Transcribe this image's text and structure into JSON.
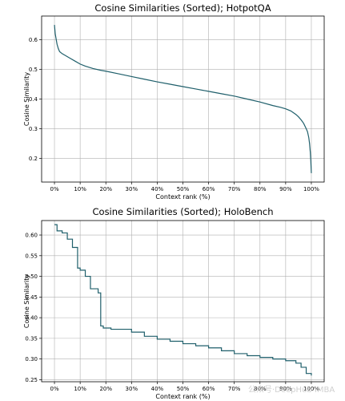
{
  "chart_data": [
    {
      "type": "line",
      "title": "Cosine Similarities (Sorted); HotpotQA",
      "xlabel": "Context rank (%)",
      "ylabel": "Cosine Similarity",
      "xlim": [
        -5,
        105
      ],
      "ylim": [
        0.12,
        0.68
      ],
      "xticks": [
        0,
        10,
        20,
        30,
        40,
        50,
        60,
        70,
        80,
        90,
        100
      ],
      "xtick_labels": [
        "0%",
        "10%",
        "20%",
        "30%",
        "40%",
        "50%",
        "60%",
        "70%",
        "80%",
        "90%",
        "100%"
      ],
      "yticks": [
        0.2,
        0.3,
        0.4,
        0.5,
        0.6
      ],
      "ytick_labels": [
        "0.2",
        "0.3",
        "0.4",
        "0.5",
        "0.6"
      ],
      "grid": true,
      "series": [
        {
          "color": "#1f5f6b",
          "x": [
            0,
            0.3,
            0.7,
            1,
            1.5,
            2,
            3,
            4,
            5,
            6,
            8,
            10,
            12,
            15,
            18,
            20,
            25,
            30,
            35,
            40,
            45,
            50,
            55,
            60,
            65,
            70,
            75,
            80,
            85,
            88,
            90,
            92,
            94,
            95,
            96,
            97,
            98,
            98.5,
            99,
            99.3,
            99.6,
            99.8,
            100
          ],
          "y": [
            0.65,
            0.62,
            0.6,
            0.585,
            0.57,
            0.56,
            0.553,
            0.548,
            0.543,
            0.538,
            0.528,
            0.518,
            0.511,
            0.503,
            0.497,
            0.494,
            0.485,
            0.476,
            0.467,
            0.458,
            0.45,
            0.442,
            0.434,
            0.426,
            0.418,
            0.41,
            0.4,
            0.39,
            0.378,
            0.372,
            0.367,
            0.36,
            0.348,
            0.34,
            0.33,
            0.318,
            0.3,
            0.29,
            0.27,
            0.25,
            0.22,
            0.19,
            0.15
          ]
        }
      ]
    },
    {
      "type": "line",
      "title": "Cosine Similarities (Sorted); HoloBench",
      "xlabel": "Context rank (%)",
      "ylabel": "Cosine Similarity",
      "xlim": [
        -5,
        105
      ],
      "ylim": [
        0.245,
        0.635
      ],
      "xticks": [
        0,
        10,
        20,
        30,
        40,
        50,
        60,
        70,
        80,
        90,
        100
      ],
      "xtick_labels": [
        "0%",
        "10%",
        "20%",
        "30%",
        "40%",
        "50%",
        "60%",
        "70%",
        "80%",
        "90%",
        "100%"
      ],
      "yticks": [
        0.25,
        0.3,
        0.35,
        0.4,
        0.45,
        0.5,
        0.55,
        0.6
      ],
      "ytick_labels": [
        "0.25",
        "0.30",
        "0.35",
        "0.40",
        "0.45",
        "0.50",
        "0.55",
        "0.60"
      ],
      "grid": true,
      "step": true,
      "series": [
        {
          "color": "#1f5f6b",
          "x": [
            0,
            1,
            3,
            5,
            7,
            9,
            10,
            12,
            14,
            17,
            18,
            19,
            22,
            30,
            35,
            40,
            45,
            50,
            55,
            60,
            65,
            70,
            75,
            80,
            85,
            90,
            94,
            96,
            98,
            100
          ],
          "y": [
            0.625,
            0.61,
            0.605,
            0.59,
            0.57,
            0.52,
            0.515,
            0.5,
            0.47,
            0.46,
            0.38,
            0.375,
            0.372,
            0.365,
            0.355,
            0.348,
            0.343,
            0.337,
            0.332,
            0.327,
            0.32,
            0.313,
            0.308,
            0.304,
            0.3,
            0.296,
            0.29,
            0.28,
            0.265,
            0.26
          ]
        }
      ]
    }
  ],
  "watermark": "公众号·DeepHub IMBA"
}
